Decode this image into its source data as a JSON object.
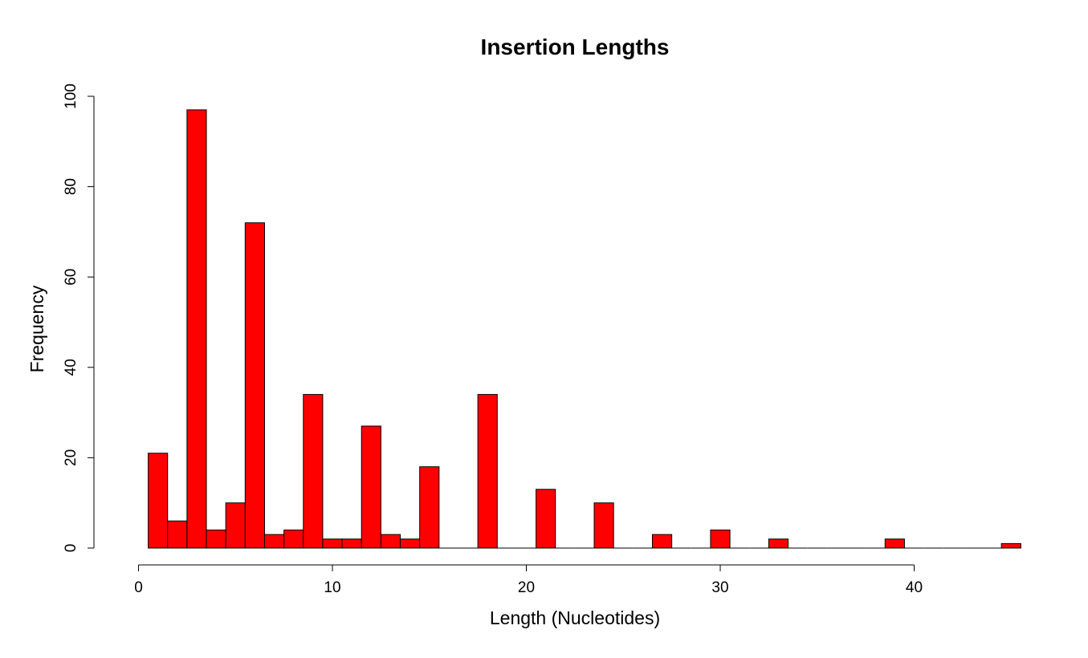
{
  "chart_data": {
    "type": "bar",
    "title": "Insertion Lengths",
    "xlabel": "Length (Nucleotides)",
    "ylabel": "Frequency",
    "bar_color": "#ff0000",
    "bin_width": 1,
    "bin_start": 0.5,
    "values": [
      21,
      6,
      97,
      4,
      10,
      72,
      3,
      4,
      34,
      2,
      2,
      27,
      3,
      2,
      18,
      0,
      0,
      34,
      0,
      0,
      13,
      0,
      0,
      10,
      0,
      0,
      3,
      0,
      0,
      4,
      0,
      0,
      2,
      0,
      0,
      0,
      0,
      0,
      2,
      0,
      0,
      0,
      0,
      0,
      1
    ],
    "xlim": [
      0,
      45
    ],
    "ylim": [
      0,
      100
    ],
    "x_ticks": [
      0,
      10,
      20,
      30,
      40
    ],
    "x_tick_labels": [
      "0",
      "10",
      "20",
      "30",
      "40"
    ],
    "y_ticks": [
      0,
      20,
      40,
      60,
      80,
      100
    ],
    "y_tick_labels": [
      "0",
      "20",
      "40",
      "60",
      "80",
      "100"
    ],
    "grid": false,
    "legend": "none"
  }
}
